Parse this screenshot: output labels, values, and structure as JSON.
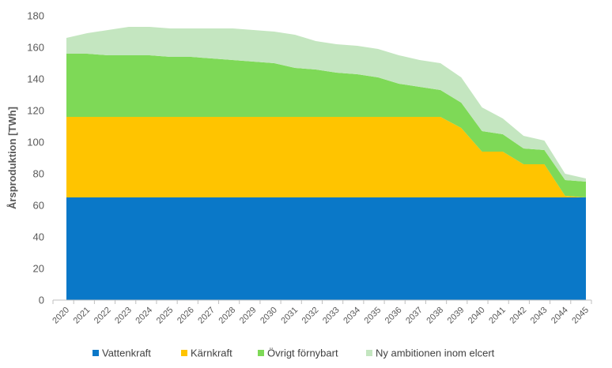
{
  "chart_data": {
    "type": "area",
    "stacked": true,
    "ylabel": "Årsproduktion [TWh]",
    "xlabel": "",
    "ylim": [
      0,
      180
    ],
    "yticks": [
      0,
      20,
      40,
      60,
      80,
      100,
      120,
      140,
      160,
      180
    ],
    "categories": [
      "2020",
      "2021",
      "2022",
      "2023",
      "2024",
      "2025",
      "2026",
      "2027",
      "2028",
      "2029",
      "2030",
      "2031",
      "2032",
      "2033",
      "2034",
      "2035",
      "2036",
      "2037",
      "2038",
      "2039",
      "2040",
      "2041",
      "2042",
      "2043",
      "2044",
      "2045"
    ],
    "series": [
      {
        "name": "Vattenkraft",
        "color": "#0A78C8",
        "values": [
          65,
          65,
          65,
          65,
          65,
          65,
          65,
          65,
          65,
          65,
          65,
          65,
          65,
          65,
          65,
          65,
          65,
          65,
          65,
          65,
          65,
          65,
          65,
          65,
          65,
          65
        ]
      },
      {
        "name": "Kärnkraft",
        "color": "#FFC400",
        "values": [
          51,
          51,
          51,
          51,
          51,
          51,
          51,
          51,
          51,
          51,
          51,
          51,
          51,
          51,
          51,
          51,
          51,
          51,
          51,
          44,
          29,
          29,
          21,
          21,
          1,
          0
        ]
      },
      {
        "name": "Övrigt förnybart",
        "color": "#7ED957",
        "values": [
          40,
          40,
          39,
          39,
          39,
          38,
          38,
          37,
          36,
          35,
          34,
          31,
          30,
          28,
          27,
          25,
          21,
          19,
          17,
          16,
          13,
          11,
          10,
          9,
          10,
          10
        ]
      },
      {
        "name": "Ny ambitionen inom elcert",
        "color": "#C4E6C0",
        "values": [
          10,
          13,
          16,
          18,
          18,
          18,
          18,
          19,
          20,
          20,
          20,
          21,
          18,
          18,
          18,
          18,
          18,
          17,
          17,
          16,
          15,
          10,
          8,
          6,
          4,
          2
        ]
      }
    ],
    "legend_position": "bottom",
    "grid": false
  }
}
